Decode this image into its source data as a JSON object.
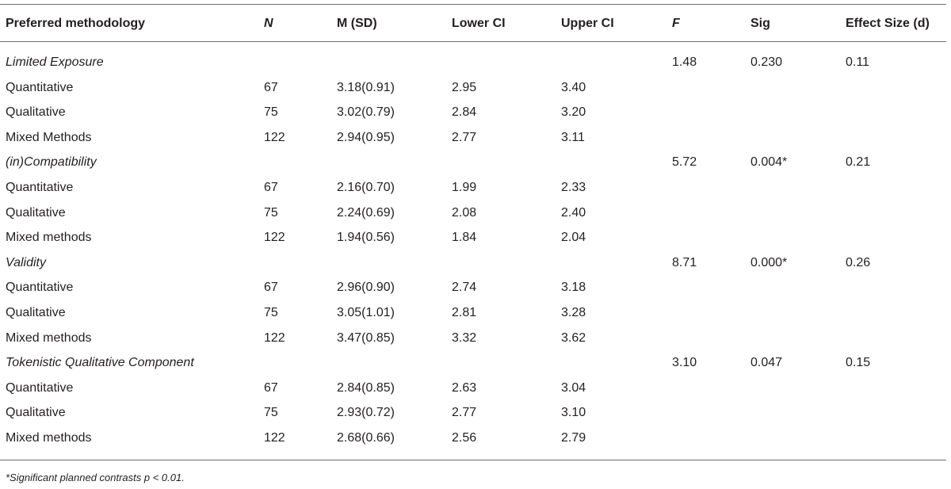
{
  "table": {
    "header": [
      "Preferred methodology",
      "N",
      "M (SD)",
      "Lower CI",
      "Upper CI",
      "F",
      "Sig",
      "Effect Size (d)"
    ],
    "groups": [
      {
        "name": "Limited Exposure",
        "F": "1.48",
        "sig": "0.230",
        "d": "0.11",
        "rows": [
          [
            "Quantitative",
            "67",
            "3.18(0.91)",
            "2.95",
            "3.40"
          ],
          [
            "Qualitative",
            "75",
            "3.02(0.79)",
            "2.84",
            "3.20"
          ],
          [
            "Mixed Methods",
            "122",
            "2.94(0.95)",
            "2.77",
            "3.11"
          ]
        ]
      },
      {
        "name": "(in)Compatibility",
        "F": "5.72",
        "sig": "0.004*",
        "d": "0.21",
        "rows": [
          [
            "Quantitative",
            "67",
            "2.16(0.70)",
            "1.99",
            "2.33"
          ],
          [
            "Qualitative",
            "75",
            "2.24(0.69)",
            "2.08",
            "2.40"
          ],
          [
            "Mixed methods",
            "122",
            "1.94(0.56)",
            "1.84",
            "2.04"
          ]
        ]
      },
      {
        "name": "Validity",
        "F": "8.71",
        "sig": "0.000*",
        "d": "0.26",
        "rows": [
          [
            "Quantitative",
            "67",
            "2.96(0.90)",
            "2.74",
            "3.18"
          ],
          [
            "Qualitative",
            "75",
            "3.05(1.01)",
            "2.81",
            "3.28"
          ],
          [
            "Mixed methods",
            "122",
            "3.47(0.85)",
            "3.32",
            "3.62"
          ]
        ]
      },
      {
        "name": "Tokenistic Qualitative Component",
        "F": "3.10",
        "sig": "0.047",
        "d": "0.15",
        "rows": [
          [
            "Quantitative",
            "67",
            "2.84(0.85)",
            "2.63",
            "3.04"
          ],
          [
            "Qualitative",
            "75",
            "2.93(0.72)",
            "2.77",
            "3.10"
          ],
          [
            "Mixed methods",
            "122",
            "2.68(0.66)",
            "2.56",
            "2.79"
          ]
        ]
      }
    ],
    "footnote": "*Significant planned contrasts p < 0.01."
  }
}
